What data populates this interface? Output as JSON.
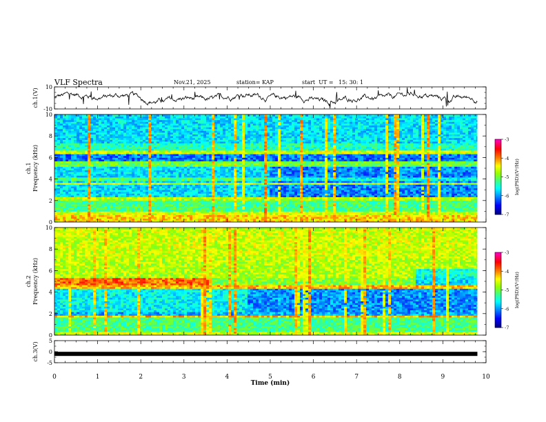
{
  "header": {
    "title": "VLF Spectra",
    "date": "Nov.21, 2025",
    "station": "station= KAP",
    "start": "start  UT =   15: 30: 1"
  },
  "chart_data": [
    {
      "type": "line",
      "panel": "ch1-waveform",
      "ylabel": "ch.1(V)",
      "ylim": [
        -10,
        10
      ],
      "yticks": [
        "10",
        "-10"
      ],
      "description_values": {
        "typical_range": [
          -6,
          6
        ],
        "duration_min": 9.8
      }
    },
    {
      "type": "heatmap",
      "panel": "ch1-spectrogram",
      "ylabel_top": "ch.1",
      "ylabel": "Frequency (kHz)",
      "ylim": [
        0,
        10
      ],
      "yticks": [
        "0",
        "2",
        "4",
        "6",
        "8",
        "10"
      ],
      "colorbar": {
        "label": "log(PSD)(V²/Hz)",
        "range": [
          -7,
          -3
        ],
        "ticks": [
          "-3",
          "-4",
          "-5",
          "-6",
          "-7"
        ]
      }
    },
    {
      "type": "heatmap",
      "panel": "ch2-spectrogram",
      "ylabel_top": "ch.2",
      "ylabel": "Frequency (kHz)",
      "ylim": [
        0,
        10
      ],
      "yticks": [
        "0",
        "2",
        "4",
        "6",
        "8",
        "10"
      ],
      "colorbar": {
        "label": "log(PSD)(V²/Hz)",
        "range": [
          -7,
          -3
        ],
        "ticks": [
          "-3",
          "-4",
          "-5",
          "-6",
          "-7"
        ]
      }
    },
    {
      "type": "line",
      "panel": "ch3-signal",
      "ylabel": "ch.3(V)",
      "ylim": [
        -5,
        5
      ],
      "yticks": [
        "5",
        "0",
        "-5"
      ],
      "level": -1
    }
  ],
  "xaxis": {
    "label": "Time (min)",
    "xlim": [
      0,
      10
    ],
    "ticks": [
      "0",
      "1",
      "2",
      "3",
      "4",
      "5",
      "6",
      "7",
      "8",
      "9",
      "10"
    ],
    "data_end": 9.8
  },
  "colors": {
    "scale": [
      "#000080",
      "#0000ff",
      "#00b0ff",
      "#00ffff",
      "#40ff80",
      "#a0ff00",
      "#ffff00",
      "#ff8000",
      "#ff0000",
      "#ff00c0"
    ]
  }
}
